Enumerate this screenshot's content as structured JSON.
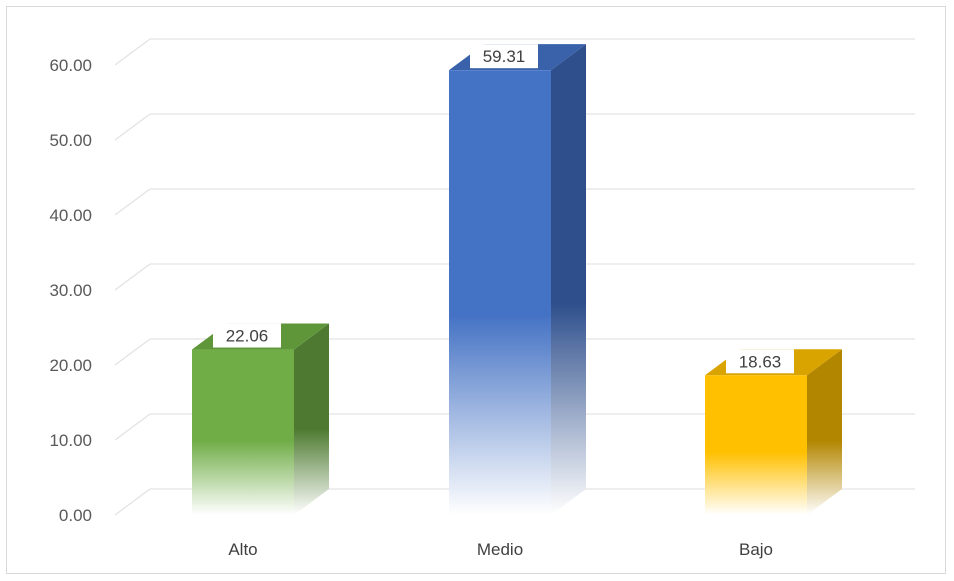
{
  "chart_data": {
    "type": "bar",
    "categories": [
      "Alto",
      "Medio",
      "Bajo"
    ],
    "values": [
      22.06,
      59.31,
      18.63
    ],
    "data_labels": [
      "22.06",
      "59.31",
      "18.63"
    ],
    "y_ticks": [
      "0.00",
      "10.00",
      "20.00",
      "30.00",
      "40.00",
      "50.00",
      "60.00"
    ],
    "ylim": [
      0,
      60
    ],
    "grid": true,
    "bar_style": "3d-column-gradient",
    "colors": [
      {
        "front": "#70ad47",
        "side": "#4d7a30",
        "top": "#5e9639"
      },
      {
        "front": "#4472c4",
        "side": "#2e4f8c",
        "top": "#3a62aa"
      },
      {
        "front": "#ffc000",
        "side": "#b38600",
        "top": "#d9a300"
      }
    ]
  }
}
